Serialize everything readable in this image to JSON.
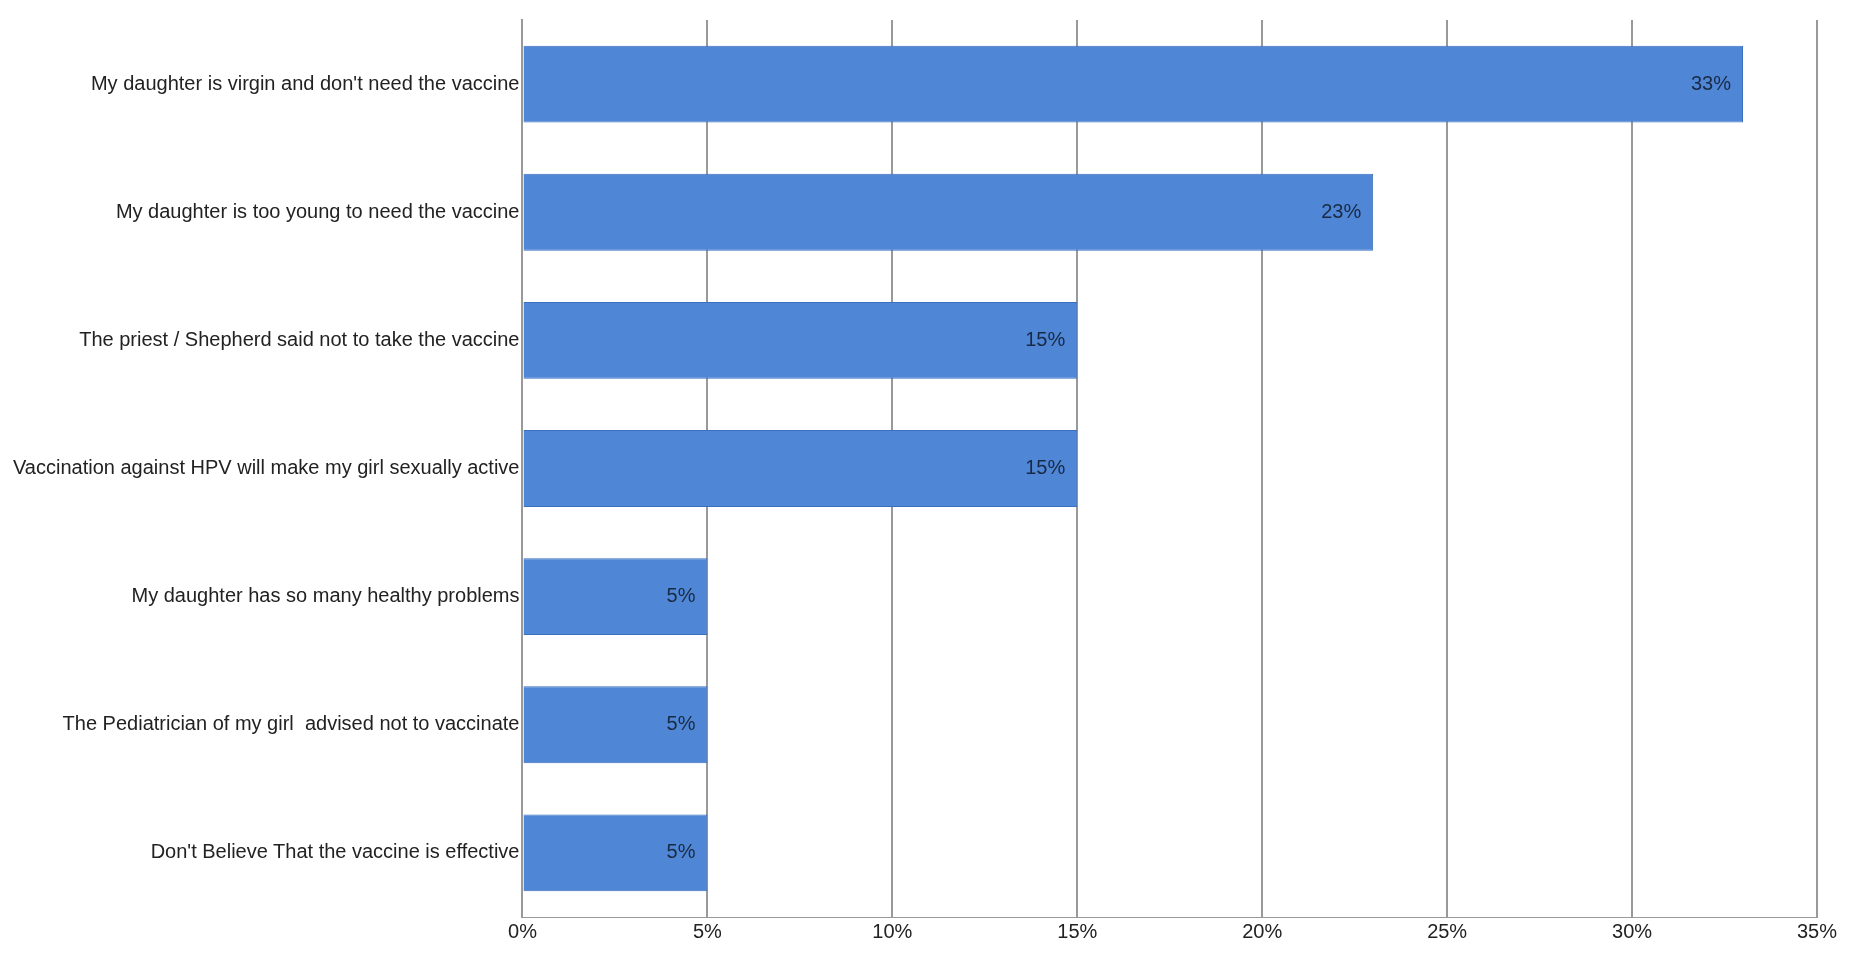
{
  "chart_data": {
    "type": "bar",
    "orientation": "horizontal",
    "categories": [
      "My daughter is virgin and don't need the vaccine",
      "My daughter is too young to need the vaccine",
      "The priest / Shepherd said not to take the vaccine",
      "Vaccination against HPV will make my girl sexually active",
      "My daughter has so many healthy problems",
      "The Pediatrician of my girl  advised not to vaccinate",
      "Don't Believe That the vaccine is effective"
    ],
    "values": [
      33,
      23,
      15,
      15,
      5,
      5,
      5
    ],
    "value_labels": [
      "33%",
      "23%",
      "15%",
      "15%",
      "5%",
      "5%",
      "5%"
    ],
    "color": "#4f86d6",
    "xlim": [
      0,
      35
    ],
    "xticks": [
      {
        "value": 0,
        "label": "0%"
      },
      {
        "value": 5,
        "label": "5%"
      },
      {
        "value": 10,
        "label": "10%"
      },
      {
        "value": 15,
        "label": "15%"
      },
      {
        "value": 20,
        "label": "20%"
      },
      {
        "value": 25,
        "label": "25%"
      },
      {
        "value": 30,
        "label": "30%"
      },
      {
        "value": 35,
        "label": "35%"
      }
    ],
    "grid": "x",
    "legend": false
  }
}
